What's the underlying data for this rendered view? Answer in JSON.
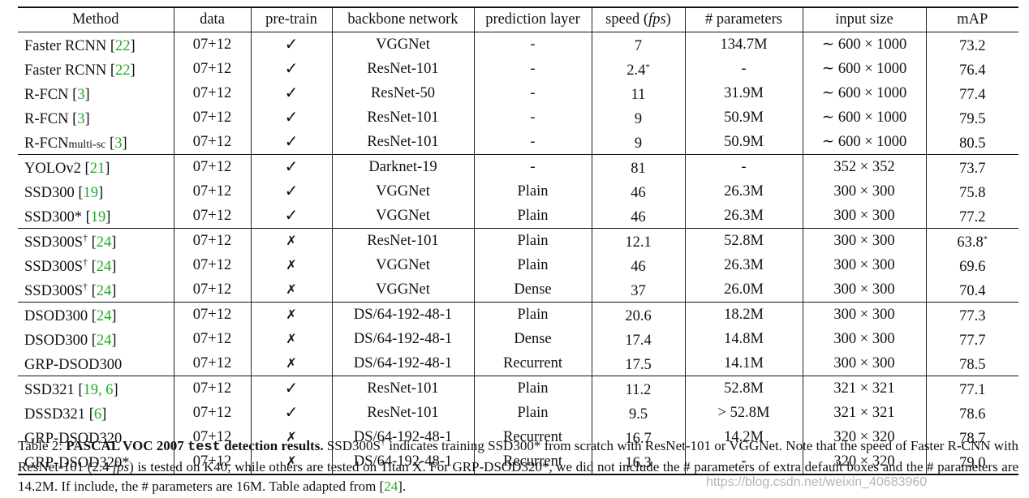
{
  "headers": [
    "Method",
    "data",
    "pre-train",
    "backbone network",
    "prediction layer",
    "speed (",
    "fps",
    ")",
    "# parameters",
    "input size",
    "mAP"
  ],
  "rows": [
    {
      "method": "Faster RCNN",
      "sub": "",
      "dagger": "",
      "cite": "22",
      "data": "07+12",
      "pretrain": "✓",
      "backbone": "VGGNet",
      "pred": "-",
      "speed": "7",
      "speed_star": "",
      "params": "134.7M",
      "input": "∼ 600 × 1000",
      "map": "73.2",
      "map_star": ""
    },
    {
      "method": "Faster RCNN",
      "sub": "",
      "dagger": "",
      "cite": "22",
      "data": "07+12",
      "pretrain": "✓",
      "backbone": "ResNet-101",
      "pred": "-",
      "speed": "2.4",
      "speed_star": "*",
      "params": "-",
      "input": "∼ 600 × 1000",
      "map": "76.4",
      "map_star": ""
    },
    {
      "method": "R-FCN",
      "sub": "",
      "dagger": "",
      "cite": "3",
      "data": "07+12",
      "pretrain": "✓",
      "backbone": "ResNet-50",
      "pred": "-",
      "speed": "11",
      "speed_star": "",
      "params": "31.9M",
      "input": "∼ 600 × 1000",
      "map": "77.4",
      "map_star": ""
    },
    {
      "method": "R-FCN",
      "sub": "",
      "dagger": "",
      "cite": "3",
      "data": "07+12",
      "pretrain": "✓",
      "backbone": "ResNet-101",
      "pred": "-",
      "speed": "9",
      "speed_star": "",
      "params": "50.9M",
      "input": "∼ 600 × 1000",
      "map": "79.5",
      "map_star": ""
    },
    {
      "method": "R-FCN",
      "sub": "multi-sc",
      "dagger": "",
      "cite": "3",
      "data": "07+12",
      "pretrain": "✓",
      "backbone": "ResNet-101",
      "pred": "-",
      "speed": "9",
      "speed_star": "",
      "params": "50.9M",
      "input": "∼ 600 × 1000",
      "map": "80.5",
      "map_star": ""
    },
    {
      "method": "YOLOv2",
      "sub": "",
      "dagger": "",
      "cite": "21",
      "data": "07+12",
      "pretrain": "✓",
      "backbone": "Darknet-19",
      "pred": "-",
      "speed": "81",
      "speed_star": "",
      "params": "-",
      "input": "352 × 352",
      "map": "73.7",
      "map_star": ""
    },
    {
      "method": "SSD300",
      "sub": "",
      "dagger": "",
      "cite": "19",
      "data": "07+12",
      "pretrain": "✓",
      "backbone": "VGGNet",
      "pred": "Plain",
      "speed": "46",
      "speed_star": "",
      "params": "26.3M",
      "input": "300 × 300",
      "map": "75.8",
      "map_star": ""
    },
    {
      "method": "SSD300*",
      "sub": "",
      "dagger": "",
      "cite": "19",
      "data": "07+12",
      "pretrain": "✓",
      "backbone": "VGGNet",
      "pred": "Plain",
      "speed": "46",
      "speed_star": "",
      "params": "26.3M",
      "input": "300 × 300",
      "map": "77.2",
      "map_star": ""
    },
    {
      "method": "SSD300S",
      "sub": "",
      "dagger": "†",
      "cite": "24",
      "data": "07+12",
      "pretrain": "✗",
      "backbone": "ResNet-101",
      "pred": "Plain",
      "speed": "12.1",
      "speed_star": "",
      "params": "52.8M",
      "input": "300 × 300",
      "map": "63.8",
      "map_star": "*"
    },
    {
      "method": "SSD300S",
      "sub": "",
      "dagger": "†",
      "cite": "24",
      "data": "07+12",
      "pretrain": "✗",
      "backbone": "VGGNet",
      "pred": "Plain",
      "speed": "46",
      "speed_star": "",
      "params": "26.3M",
      "input": "300 × 300",
      "map": "69.6",
      "map_star": ""
    },
    {
      "method": "SSD300S",
      "sub": "",
      "dagger": "†",
      "cite": "24",
      "data": "07+12",
      "pretrain": "✗",
      "backbone": "VGGNet",
      "pred": "Dense",
      "speed": "37",
      "speed_star": "",
      "params": "26.0M",
      "input": "300 × 300",
      "map": "70.4",
      "map_star": ""
    },
    {
      "method": "DSOD300",
      "sub": "",
      "dagger": "",
      "cite": "24",
      "data": "07+12",
      "pretrain": "✗",
      "backbone": "DS/64-192-48-1",
      "pred": "Plain",
      "speed": "20.6",
      "speed_star": "",
      "params": "18.2M",
      "input": "300 × 300",
      "map": "77.3",
      "map_star": ""
    },
    {
      "method": "DSOD300",
      "sub": "",
      "dagger": "",
      "cite": "24",
      "data": "07+12",
      "pretrain": "✗",
      "backbone": "DS/64-192-48-1",
      "pred": "Dense",
      "speed": "17.4",
      "speed_star": "",
      "params": "14.8M",
      "input": "300 × 300",
      "map": "77.7",
      "map_star": ""
    },
    {
      "method": "GRP-DSOD300",
      "sub": "",
      "dagger": "",
      "cite": "",
      "data": "07+12",
      "pretrain": "✗",
      "backbone": "DS/64-192-48-1",
      "pred": "Recurrent",
      "speed": "17.5",
      "speed_star": "",
      "params": "14.1M",
      "input": "300 × 300",
      "map": "78.5",
      "map_star": ""
    },
    {
      "method": "SSD321",
      "sub": "",
      "dagger": "",
      "cite": "19, 6",
      "data": "07+12",
      "pretrain": "✓",
      "backbone": "ResNet-101",
      "pred": "Plain",
      "speed": "11.2",
      "speed_star": "",
      "params": "52.8M",
      "input": "321 × 321",
      "map": "77.1",
      "map_star": ""
    },
    {
      "method": "DSSD321",
      "sub": "",
      "dagger": "",
      "cite": "6",
      "data": "07+12",
      "pretrain": "✓",
      "backbone": "ResNet-101",
      "pred": "Plain",
      "speed": "9.5",
      "speed_star": "",
      "params": "> 52.8M",
      "input": "321 × 321",
      "map": "78.6",
      "map_star": ""
    },
    {
      "method": "GRP-DSOD320",
      "sub": "",
      "dagger": "",
      "cite": "",
      "data": "07+12",
      "pretrain": "✗",
      "backbone": "DS/64-192-48-1",
      "pred": "Recurrent",
      "speed": "16.7",
      "speed_star": "",
      "params": "14.2M",
      "input": "320 × 320",
      "map": "78.7",
      "map_star": ""
    },
    {
      "method": "GRP-DSOD320*",
      "sub": "",
      "dagger": "",
      "cite": "",
      "data": "07+12",
      "pretrain": "✗",
      "backbone": "DS/64-192-48-1",
      "pred": "Recurrent",
      "speed": "16.3",
      "speed_star": "",
      "params": "-",
      "input": "320 × 320",
      "map": "79.0",
      "map_star": ""
    }
  ],
  "group_ends": [
    4,
    7,
    10,
    13
  ],
  "caption": {
    "label": "Table 2: ",
    "bold1": "PASCAL VOC 2007 ",
    "mono": "test",
    "bold2": " detection results.",
    "t1": " SSD300S",
    "dagger": "†",
    "t2": " indicates training SSD300* from scratch with ResNet-101 or VGGNet. Note that the speed of Faster R-CNN with ResNet-101 (2.4 ",
    "fps": "fps",
    "t3": ") is tested on K40, while others are tested on Titan X. For GRP-DSOD320*, we did not include the # parameters of extra default boxes and the # parameters are 14.2M. If include, the # parameters are 16M. Table adapted from [",
    "cite": "24",
    "t4": "]."
  },
  "watermark": "https://blog.csdn.net/weixin_40683960"
}
